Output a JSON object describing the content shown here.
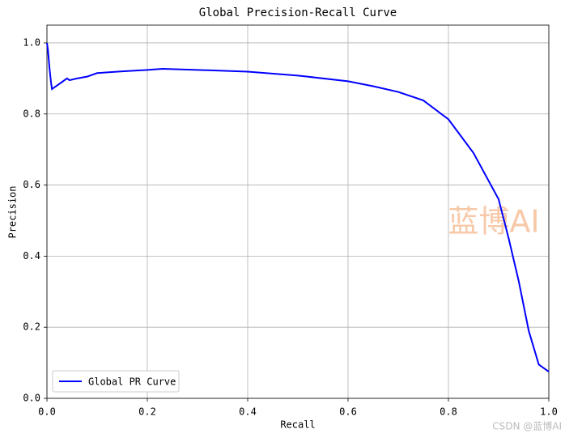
{
  "chart_data": {
    "type": "line",
    "title": "Global Precision-Recall Curve",
    "x_label": "Recall",
    "y_label": "Precision",
    "x": [
      0,
      0.002,
      0.005,
      0.008,
      0.01,
      0.015,
      0.02,
      0.03,
      0.04,
      0.045,
      0.06,
      0.08,
      0.1,
      0.15,
      0.2,
      0.23,
      0.3,
      0.4,
      0.5,
      0.6,
      0.65,
      0.7,
      0.75,
      0.8,
      0.85,
      0.9,
      0.92,
      0.94,
      0.96,
      0.98,
      1.0
    ],
    "series": [
      {
        "name": "Global PR Curve",
        "color": "#0000ff",
        "values": [
          1.0,
          0.98,
          0.93,
          0.89,
          0.87,
          0.875,
          0.88,
          0.89,
          0.9,
          0.895,
          0.9,
          0.905,
          0.915,
          0.92,
          0.924,
          0.927,
          0.924,
          0.919,
          0.908,
          0.892,
          0.878,
          0.862,
          0.838,
          0.785,
          0.69,
          0.56,
          0.45,
          0.33,
          0.19,
          0.095,
          0.075
        ]
      }
    ],
    "xlim": [
      0,
      1
    ],
    "ylim": [
      0,
      1.05
    ],
    "xticks": [
      {
        "value": 0,
        "label": "0.0"
      },
      0.2,
      0.4,
      0.6,
      0.8,
      {
        "value": 1,
        "label": "1.0"
      }
    ],
    "yticks": [
      {
        "value": 0,
        "label": "0.0"
      },
      0.2,
      0.4,
      0.6,
      0.8,
      {
        "value": 1,
        "label": "1.0"
      }
    ],
    "grid": true,
    "legend": "lower left",
    "annotations": [
      "蓝博AI",
      "CSDN @蓝博AI"
    ]
  }
}
